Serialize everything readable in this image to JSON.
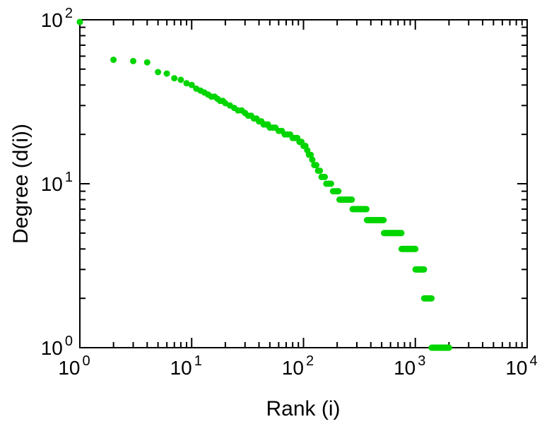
{
  "chart_data": {
    "type": "scatter",
    "title": "",
    "xlabel": "Rank (i)",
    "ylabel": "Degree (d(i))",
    "xscale": "log",
    "yscale": "log",
    "xlim": [
      1,
      10000
    ],
    "ylim": [
      1,
      100
    ],
    "tick_base": "10",
    "x_tick_exponents": [
      0,
      1,
      2,
      3,
      4
    ],
    "y_tick_exponents": [
      0,
      1,
      2
    ],
    "grid": false,
    "legend": "none",
    "marker_color": "#00d500",
    "axis_color": "#000000",
    "background_color": "#ffffff",
    "points": [
      [
        1,
        97
      ],
      [
        2,
        57
      ],
      [
        3,
        56
      ],
      [
        4,
        55
      ],
      [
        5,
        48
      ],
      [
        6,
        47
      ],
      [
        7,
        44
      ],
      [
        8,
        43
      ],
      [
        9,
        41
      ],
      [
        10,
        40
      ],
      [
        11,
        38
      ],
      [
        12,
        37
      ],
      [
        13,
        36
      ],
      [
        14,
        35
      ],
      [
        15,
        34
      ],
      [
        16,
        34
      ],
      [
        17,
        33
      ],
      [
        18,
        32
      ],
      [
        19,
        32
      ],
      [
        20,
        31
      ],
      [
        22,
        30
      ],
      [
        24,
        29
      ],
      [
        26,
        28
      ],
      [
        28,
        28
      ],
      [
        30,
        27
      ],
      [
        32,
        26
      ],
      [
        34,
        26
      ],
      [
        36,
        25
      ],
      [
        38,
        25
      ],
      [
        40,
        24
      ],
      [
        42,
        24
      ],
      [
        44,
        23
      ],
      [
        46,
        23
      ],
      [
        48,
        23
      ],
      [
        50,
        22
      ],
      [
        53,
        22
      ],
      [
        56,
        22
      ],
      [
        60,
        21
      ],
      [
        64,
        21
      ],
      [
        68,
        20
      ],
      [
        72,
        20
      ],
      [
        76,
        20
      ],
      [
        80,
        19
      ],
      [
        84,
        19
      ],
      [
        88,
        19
      ],
      [
        92,
        18
      ],
      [
        96,
        18
      ],
      [
        100,
        17
      ],
      [
        104,
        17
      ],
      [
        108,
        16
      ],
      [
        112,
        15
      ],
      [
        116,
        15
      ],
      [
        120,
        14
      ],
      [
        125,
        13
      ],
      [
        130,
        13
      ],
      [
        135,
        12
      ],
      [
        140,
        12
      ],
      [
        145,
        11
      ],
      [
        150,
        11
      ],
      [
        155,
        11
      ],
      [
        160,
        10
      ],
      [
        168,
        10
      ],
      [
        176,
        10
      ],
      [
        184,
        9
      ],
      [
        192,
        9
      ],
      [
        200,
        9
      ],
      [
        205,
        9
      ]
    ],
    "runs": [
      {
        "degree": 8,
        "rank_start": 210,
        "rank_end": 270,
        "points": 12
      },
      {
        "degree": 7,
        "rank_start": 275,
        "rank_end": 365,
        "points": 14
      },
      {
        "degree": 6,
        "rank_start": 370,
        "rank_end": 520,
        "points": 16
      },
      {
        "degree": 5,
        "rank_start": 525,
        "rank_end": 750,
        "points": 18
      },
      {
        "degree": 4,
        "rank_start": 755,
        "rank_end": 1000,
        "points": 16
      },
      {
        "degree": 3,
        "rank_start": 1005,
        "rank_end": 1195,
        "points": 12
      },
      {
        "degree": 2,
        "rank_start": 1200,
        "rank_end": 1395,
        "points": 10
      },
      {
        "degree": 1,
        "rank_start": 1400,
        "rank_end": 2000,
        "points": 20
      }
    ]
  }
}
